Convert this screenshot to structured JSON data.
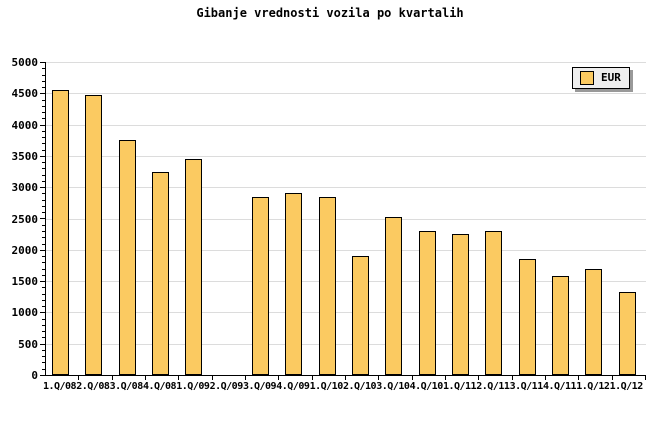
{
  "title": "Gibanje vrednosti vozila po kvartalih",
  "legend": {
    "label": "EUR",
    "position": "top-right"
  },
  "colors": {
    "bar_fill": "#FBCA61",
    "bar_border": "#000000",
    "gridline": "#DCDCDC",
    "axis": "#000000",
    "legend_bg": "#EEEEEE",
    "legend_shadow": "#999999",
    "background": "#FFFFFF",
    "text": "#000000"
  },
  "chart_data": {
    "type": "bar",
    "title": "Gibanje vrednosti vozila po kvartalih",
    "xlabel": "",
    "ylabel": "",
    "categories": [
      "1.Q/08",
      "2.Q/08",
      "3.Q/08",
      "4.Q/08",
      "1.Q/09",
      "2.Q/09",
      "3.Q/09",
      "4.Q/09",
      "1.Q/10",
      "2.Q/10",
      "3.Q/10",
      "4.Q/10",
      "1.Q/11",
      "2.Q/11",
      "3.Q/11",
      "4.Q/11",
      "1.Q/12",
      "1.Q/12"
    ],
    "series": [
      {
        "name": "EUR",
        "values": [
          4550,
          4475,
          3750,
          3250,
          3450,
          null,
          2850,
          2900,
          2850,
          1900,
          2525,
          2300,
          2250,
          2300,
          1850,
          1575,
          1700,
          1325
        ]
      }
    ],
    "missing_categories": [
      "2.Q/09"
    ],
    "ylim": [
      0,
      5000
    ],
    "ytick_step": 500,
    "yminor_step": 100,
    "ytick_labels": [
      "0",
      "500",
      "1000",
      "1500",
      "2000",
      "2500",
      "3000",
      "3500",
      "4000",
      "4500",
      "5000"
    ],
    "grid": "horizontal",
    "legend_position": "top-right"
  }
}
